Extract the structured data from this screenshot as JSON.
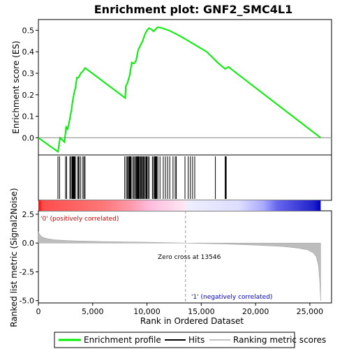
{
  "chart_data": {
    "type": "line",
    "title": "Enrichment plot: GNF2_SMC4L1",
    "xlabel": "Rank in Ordered Dataset",
    "ylabel_top": "Enrichment score (ES)",
    "ylabel_bottom": "Ranked list metric (Signal2Noise)",
    "xlim": [
      0,
      27000
    ],
    "es_ylim": [
      -0.08,
      0.55
    ],
    "metric_ylim": [
      -5.2,
      2.8
    ],
    "x_ticks": [
      0,
      5000,
      10000,
      15000,
      20000,
      25000
    ],
    "x_tick_labels": [
      "0",
      "5,000",
      "10,000",
      "15,000",
      "20,000",
      "25,000"
    ],
    "es_ticks": [
      0.0,
      0.1,
      0.2,
      0.3,
      0.4,
      0.5
    ],
    "es_tick_labels": [
      "0.0",
      "0.1",
      "0.2",
      "0.3",
      "0.4",
      "0.5"
    ],
    "metric_ticks": [
      2.5,
      0.0,
      -2.5,
      -5.0
    ],
    "metric_tick_labels": [
      "2.5",
      "0.0",
      "-2.5",
      "-5.0"
    ],
    "series": [
      {
        "name": "Enrichment profile",
        "color": "#00ee00",
        "x": [
          0,
          1800,
          1900,
          2000,
          2400,
          2550,
          2700,
          2900,
          3050,
          3150,
          3300,
          3400,
          3550,
          3700,
          3900,
          4100,
          4300,
          8000,
          8050,
          8200,
          8400,
          8600,
          8800,
          9000,
          9200,
          9400,
          9600,
          9800,
          10000,
          10200,
          10400,
          10600,
          10800,
          11000,
          11400,
          12000,
          12800,
          13500,
          14500,
          15500,
          16500,
          17200,
          17500,
          18000,
          26000
        ],
        "y": [
          0.0,
          -0.065,
          -0.03,
          0.0,
          -0.02,
          0.05,
          0.04,
          0.09,
          0.13,
          0.17,
          0.21,
          0.23,
          0.28,
          0.28,
          0.3,
          0.31,
          0.325,
          0.185,
          0.24,
          0.255,
          0.29,
          0.35,
          0.345,
          0.36,
          0.41,
          0.43,
          0.45,
          0.48,
          0.5,
          0.51,
          0.505,
          0.495,
          0.505,
          0.515,
          0.51,
          0.5,
          0.48,
          0.46,
          0.43,
          0.4,
          0.35,
          0.32,
          0.33,
          0.31,
          0.0
        ]
      }
    ],
    "hits": [
      1800,
      1950,
      2500,
      2600,
      2900,
      3000,
      3100,
      3150,
      3200,
      3250,
      3300,
      3350,
      3400,
      3600,
      3700,
      3750,
      3900,
      4100,
      4200,
      4300,
      7950,
      8100,
      8200,
      8300,
      8350,
      8400,
      8450,
      8500,
      8550,
      8700,
      8800,
      8900,
      9000,
      9050,
      9100,
      9150,
      9200,
      9250,
      9300,
      9400,
      9450,
      9500,
      9600,
      9650,
      9700,
      9800,
      9900,
      9950,
      10000,
      10100,
      10200,
      10500,
      10600,
      10700,
      10750,
      10800,
      10850,
      10900,
      11000,
      11200,
      11500,
      11700,
      11900,
      12100,
      12400,
      12600,
      12700,
      13500,
      13800,
      14000,
      14200,
      14400,
      16300,
      17200,
      17250,
      17300
    ],
    "hit_labels": "Hits",
    "metric_label": "Ranking metric scores",
    "zero_cross": "Zero cross at 13546",
    "zero_cross_x": 13546,
    "pos_label": "'0' (positively correlated)",
    "neg_label": "'1' (negatively correlated)",
    "metric_curve": {
      "x": [
        0,
        150,
        400,
        800,
        1500,
        3000,
        6000,
        10000,
        13546,
        17000,
        20000,
        22500,
        24000,
        24800,
        25300,
        25600,
        25800,
        25900,
        26000
      ],
      "y": [
        1.0,
        0.7,
        0.5,
        0.38,
        0.28,
        0.2,
        0.13,
        0.07,
        0.0,
        -0.08,
        -0.18,
        -0.3,
        -0.45,
        -0.6,
        -0.85,
        -1.2,
        -2.0,
        -3.2,
        -5.0
      ]
    },
    "heat_stops": [
      {
        "x": 0,
        "color": "#ff0000"
      },
      {
        "x": 400,
        "color": "#ff4d4d"
      },
      {
        "x": 6000,
        "color": "#ff7777"
      },
      {
        "x": 8500,
        "color": "#ff99aa"
      },
      {
        "x": 10200,
        "color": "#ffbbdd"
      },
      {
        "x": 13546,
        "color": "#ffe8f4"
      },
      {
        "x": 13700,
        "color": "#eeeeff"
      },
      {
        "x": 18500,
        "color": "#ddddff"
      },
      {
        "x": 20700,
        "color": "#aaaaff"
      },
      {
        "x": 22000,
        "color": "#6666ee"
      },
      {
        "x": 25300,
        "color": "#2222cc"
      },
      {
        "x": 26000,
        "color": "#0000bb"
      }
    ],
    "legend": [
      {
        "label": "Enrichment profile",
        "color": "#00ee00"
      },
      {
        "label": "Hits",
        "color": "#000000"
      },
      {
        "label": "Ranking metric scores",
        "color": "#c0c0c0"
      }
    ]
  }
}
